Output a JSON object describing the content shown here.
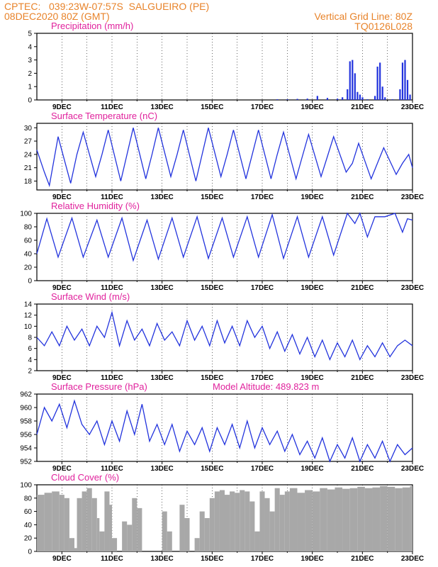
{
  "header": {
    "line1_left": "CPTEC:   039:23W-07:57S  SALGUEIRO (PE)",
    "line2_left": "08DEC2020 80Z (GMT)",
    "line1_right": "Vertical Grid Line: 80Z",
    "line2_right": "TQ0126L028"
  },
  "colors": {
    "header": "#e8832a",
    "title": "#e0219c",
    "series": "#2233dd",
    "cloud": "#a8a8a8",
    "frame": "#000000"
  },
  "chart_data": [
    {
      "type": "bar",
      "title": "Precipitation (mm/h)",
      "xlabel": "",
      "ylabel": "",
      "ylim": [
        0,
        5
      ],
      "yticks": [
        0,
        1,
        2,
        3,
        4,
        5
      ],
      "xticks": [
        "9DEC",
        "11DEC",
        "13DEC",
        "15DEC",
        "17DEC",
        "19DEC",
        "21DEC",
        "23DEC"
      ],
      "x": [
        17.6,
        18.0,
        18.4,
        18.8,
        19.2,
        19.6,
        20.0,
        20.2,
        20.4,
        20.5,
        20.6,
        20.7,
        20.8,
        20.9,
        21.0,
        21.2,
        21.5,
        21.6,
        21.7,
        21.8,
        21.9,
        22.2,
        22.5,
        22.6,
        22.7,
        22.8,
        22.9
      ],
      "values": [
        0.05,
        0.05,
        0.08,
        0.1,
        0.3,
        0.15,
        0.1,
        0.2,
        0.8,
        2.9,
        3.0,
        2.0,
        0.6,
        0.4,
        0.2,
        0.05,
        0.3,
        2.5,
        2.8,
        1.0,
        0.2,
        0.05,
        0.8,
        2.8,
        3.0,
        1.5,
        0.4
      ]
    },
    {
      "type": "line",
      "title": "Surface Temperature (nC)",
      "xlabel": "",
      "ylabel": "",
      "ylim": [
        16,
        31
      ],
      "yticks": [
        18,
        21,
        24,
        27,
        30
      ],
      "xticks": [
        "9DEC",
        "11DEC",
        "13DEC",
        "15DEC",
        "17DEC",
        "19DEC",
        "21DEC",
        "23DEC"
      ],
      "x": [
        8.0,
        8.3,
        8.5,
        8.85,
        9.35,
        9.6,
        9.85,
        10.35,
        10.6,
        10.85,
        11.35,
        11.6,
        11.85,
        12.35,
        12.6,
        12.85,
        13.35,
        13.6,
        13.85,
        14.35,
        14.6,
        14.85,
        15.35,
        15.6,
        15.85,
        16.35,
        16.6,
        16.85,
        17.35,
        17.6,
        17.85,
        18.35,
        18.6,
        18.85,
        19.35,
        19.6,
        19.85,
        20.35,
        20.6,
        20.85,
        21.35,
        21.6,
        21.85,
        22.35,
        22.6,
        22.85,
        23.0
      ],
      "values": [
        25,
        20,
        17,
        28,
        17.5,
        24,
        29,
        19,
        24,
        29.5,
        18,
        24,
        30,
        18.5,
        24,
        30,
        19,
        24,
        29.5,
        18,
        24,
        30,
        19,
        24,
        29.5,
        18.5,
        24,
        29.5,
        18.5,
        24,
        29,
        18.5,
        23.5,
        28.5,
        19,
        23.5,
        28,
        20,
        22,
        26.5,
        18.5,
        22,
        25.5,
        19.5,
        22,
        24,
        21
      ]
    },
    {
      "type": "line",
      "title": "Relative Humidity (%)",
      "xlabel": "",
      "ylabel": "",
      "ylim": [
        0,
        100
      ],
      "yticks": [
        0,
        20,
        40,
        60,
        80,
        100
      ],
      "xticks": [
        "9DEC",
        "11DEC",
        "13DEC",
        "15DEC",
        "17DEC",
        "19DEC",
        "21DEC",
        "23DEC"
      ],
      "x": [
        8.0,
        8.4,
        8.85,
        9.4,
        9.85,
        10.4,
        10.85,
        11.4,
        11.85,
        12.4,
        12.85,
        13.4,
        13.85,
        14.4,
        14.85,
        15.4,
        15.85,
        16.4,
        16.85,
        17.4,
        17.85,
        18.4,
        18.85,
        19.4,
        19.85,
        20.4,
        20.7,
        20.9,
        21.2,
        21.5,
        21.9,
        22.3,
        22.6,
        22.8,
        23.0
      ],
      "values": [
        40,
        92,
        35,
        93,
        35,
        90,
        35,
        93,
        30,
        90,
        32,
        93,
        35,
        95,
        33,
        93,
        35,
        95,
        35,
        98,
        33,
        95,
        35,
        95,
        38,
        100,
        85,
        100,
        65,
        95,
        95,
        100,
        72,
        92,
        90
      ]
    },
    {
      "type": "line",
      "title": "Surface Wind (m/s)",
      "xlabel": "",
      "ylabel": "",
      "ylim": [
        2,
        14
      ],
      "yticks": [
        2,
        4,
        6,
        8,
        10,
        12,
        14
      ],
      "xticks": [
        "9DEC",
        "11DEC",
        "13DEC",
        "15DEC",
        "17DEC",
        "19DEC",
        "21DEC",
        "23DEC"
      ],
      "x": [
        8.0,
        8.3,
        8.6,
        8.9,
        9.2,
        9.5,
        9.8,
        10.1,
        10.4,
        10.7,
        11.0,
        11.3,
        11.6,
        11.9,
        12.2,
        12.5,
        12.8,
        13.1,
        13.4,
        13.7,
        14.0,
        14.3,
        14.6,
        14.9,
        15.2,
        15.5,
        15.8,
        16.1,
        16.4,
        16.7,
        17.0,
        17.3,
        17.6,
        17.9,
        18.2,
        18.5,
        18.8,
        19.1,
        19.4,
        19.7,
        20.0,
        20.3,
        20.6,
        20.9,
        21.2,
        21.5,
        21.8,
        22.1,
        22.4,
        22.7,
        23.0
      ],
      "values": [
        8,
        6.5,
        9,
        6.5,
        10,
        7.5,
        9.5,
        6.5,
        10,
        8,
        12.5,
        6.5,
        11,
        7.5,
        9.5,
        6.5,
        10.5,
        7.5,
        9,
        6.5,
        11,
        7.5,
        10,
        6.5,
        11,
        7,
        10,
        6.5,
        11,
        8,
        10,
        6,
        9,
        5.5,
        8.5,
        5,
        8,
        4.5,
        7.5,
        4,
        7,
        4.5,
        7.5,
        4,
        6.5,
        4.5,
        7,
        4.5,
        6.5,
        7.5,
        6.5
      ]
    },
    {
      "type": "line",
      "title": "Surface Pressure (hPa)",
      "annotation": "Model Altitude: 489.823 m",
      "xlabel": "",
      "ylabel": "",
      "ylim": [
        952,
        962
      ],
      "yticks": [
        952,
        954,
        956,
        958,
        960,
        962
      ],
      "xticks": [
        "9DEC",
        "11DEC",
        "13DEC",
        "15DEC",
        "17DEC",
        "19DEC",
        "21DEC",
        "23DEC"
      ],
      "x": [
        8.0,
        8.3,
        8.6,
        8.9,
        9.2,
        9.5,
        9.8,
        10.1,
        10.4,
        10.7,
        11.0,
        11.3,
        11.6,
        11.9,
        12.2,
        12.5,
        12.8,
        13.1,
        13.4,
        13.7,
        14.0,
        14.3,
        14.6,
        14.9,
        15.2,
        15.5,
        15.8,
        16.1,
        16.4,
        16.7,
        17.0,
        17.3,
        17.6,
        17.9,
        18.2,
        18.5,
        18.8,
        19.1,
        19.4,
        19.7,
        20.0,
        20.3,
        20.6,
        20.9,
        21.2,
        21.5,
        21.8,
        22.1,
        22.4,
        22.7,
        23.0
      ],
      "values": [
        956,
        960,
        958,
        960.5,
        957,
        961,
        957.5,
        956,
        958,
        954.5,
        958,
        955,
        959.5,
        956,
        960.5,
        955,
        957.5,
        954.5,
        957.5,
        953.5,
        956.5,
        954.5,
        957,
        953.5,
        957,
        954.5,
        957.5,
        954,
        958,
        954,
        957,
        954.5,
        956.5,
        953.5,
        956,
        953,
        955,
        952.5,
        955.5,
        952,
        954.5,
        952.5,
        955.5,
        952,
        954.5,
        952.5,
        955,
        952,
        954.5,
        953,
        954
      ]
    },
    {
      "type": "area",
      "title": "Cloud Cover (%)",
      "xlabel": "",
      "ylabel": "",
      "ylim": [
        0,
        100
      ],
      "yticks": [
        0,
        20,
        40,
        60,
        80,
        100
      ],
      "xticks": [
        "9DEC",
        "11DEC",
        "13DEC",
        "15DEC",
        "17DEC",
        "19DEC",
        "21DEC",
        "23DEC"
      ],
      "x": [
        8.0,
        8.3,
        8.6,
        8.9,
        9.1,
        9.3,
        9.5,
        9.6,
        9.8,
        10.0,
        10.2,
        10.4,
        10.5,
        10.7,
        10.9,
        11.0,
        11.2,
        11.4,
        11.6,
        11.8,
        12.0,
        12.2,
        12.4,
        12.6,
        12.8,
        13.0,
        13.2,
        13.4,
        13.5,
        13.7,
        13.9,
        14.1,
        14.3,
        14.5,
        14.7,
        14.9,
        15.1,
        15.3,
        15.5,
        15.7,
        15.9,
        16.1,
        16.3,
        16.5,
        16.7,
        16.9,
        17.1,
        17.3,
        17.5,
        17.7,
        17.9,
        18.1,
        18.4,
        18.7,
        19.0,
        19.3,
        19.6,
        19.9,
        20.2,
        20.5,
        20.8,
        21.1,
        21.4,
        21.7,
        22.0,
        22.3,
        22.6,
        22.9,
        23.0
      ],
      "values": [
        85,
        88,
        90,
        85,
        80,
        20,
        5,
        80,
        90,
        95,
        80,
        50,
        30,
        90,
        70,
        20,
        0,
        45,
        40,
        80,
        65,
        0,
        0,
        0,
        0,
        60,
        30,
        0,
        0,
        70,
        50,
        0,
        20,
        60,
        50,
        80,
        90,
        92,
        85,
        90,
        88,
        92,
        90,
        75,
        30,
        90,
        80,
        60,
        95,
        85,
        90,
        95,
        88,
        92,
        90,
        95,
        93,
        96,
        94,
        95,
        97,
        95,
        96,
        98,
        97,
        95,
        96,
        98,
        95
      ]
    }
  ]
}
